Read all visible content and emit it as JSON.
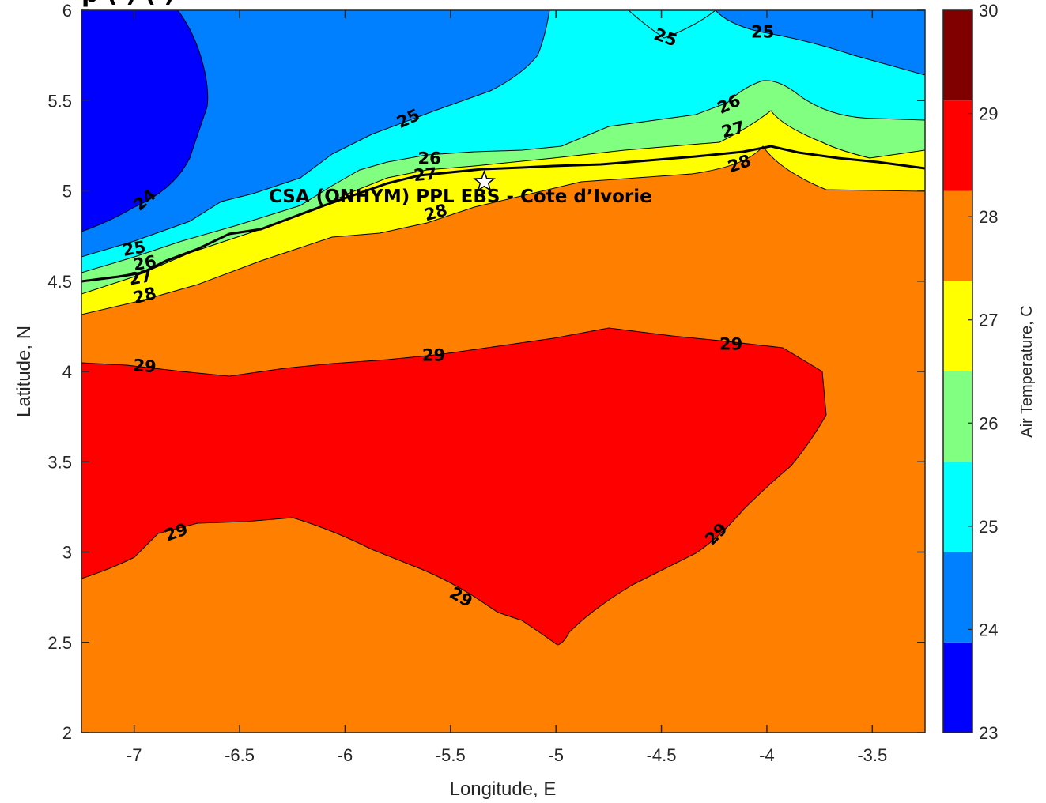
{
  "chart_data": {
    "type": "contourf",
    "xlabel": "Longitude, E",
    "ylabel": "Latitude, N",
    "xlim": [
      -7.25,
      -3.25
    ],
    "ylim": [
      2,
      6
    ],
    "xticks": [
      -7,
      -6.5,
      -6,
      -5.5,
      -5,
      -4.5,
      -4,
      -3.5
    ],
    "yticks": [
      2,
      2.5,
      3,
      3.5,
      4,
      4.5,
      5,
      5.5,
      6
    ],
    "colorbar": {
      "label": "Air Temperature, C",
      "range": [
        23,
        30
      ],
      "ticks": [
        23,
        24,
        25,
        26,
        27,
        28,
        29,
        30
      ],
      "colors": [
        "#0000ff",
        "#0080ff",
        "#00ffff",
        "#80ff80",
        "#ffff00",
        "#ff8000",
        "#ff0000",
        "#800000"
      ]
    },
    "contour_labels": [
      {
        "text": "24",
        "lon": -6.95,
        "lat": 4.95,
        "rot": -40
      },
      {
        "text": "25",
        "lon": -7.0,
        "lat": 4.68,
        "rot": -10
      },
      {
        "text": "26",
        "lon": -6.95,
        "lat": 4.6,
        "rot": -10
      },
      {
        "text": "27",
        "lon": -6.97,
        "lat": 4.52,
        "rot": -10
      },
      {
        "text": "28",
        "lon": -6.95,
        "lat": 4.42,
        "rot": -15
      },
      {
        "text": "25",
        "lon": -5.7,
        "lat": 5.4,
        "rot": -25
      },
      {
        "text": "26",
        "lon": -5.6,
        "lat": 5.18,
        "rot": 0
      },
      {
        "text": "27",
        "lon": -5.62,
        "lat": 5.09,
        "rot": -5
      },
      {
        "text": "28",
        "lon": -5.57,
        "lat": 4.88,
        "rot": -15
      },
      {
        "text": "25",
        "lon": -4.48,
        "lat": 5.85,
        "rot": 20
      },
      {
        "text": "25",
        "lon": -4.02,
        "lat": 5.88,
        "rot": 0
      },
      {
        "text": "26",
        "lon": -4.18,
        "lat": 5.48,
        "rot": -25
      },
      {
        "text": "27",
        "lon": -4.16,
        "lat": 5.34,
        "rot": -15
      },
      {
        "text": "28",
        "lon": -4.13,
        "lat": 5.15,
        "rot": -20
      },
      {
        "text": "29",
        "lon": -6.95,
        "lat": 4.03,
        "rot": 5
      },
      {
        "text": "29",
        "lon": -5.58,
        "lat": 4.09,
        "rot": 0
      },
      {
        "text": "29",
        "lon": -4.17,
        "lat": 4.15,
        "rot": 0
      },
      {
        "text": "29",
        "lon": -6.8,
        "lat": 3.11,
        "rot": -20
      },
      {
        "text": "29",
        "lon": -5.45,
        "lat": 2.75,
        "rot": 30
      },
      {
        "text": "29",
        "lon": -4.24,
        "lat": 3.1,
        "rot": -45
      }
    ],
    "annotation": {
      "text": "CSA (ONHYM) PPL EBS  - Cote d’Ivorie",
      "marker": "star",
      "lon": -5.34,
      "lat": 5.05
    },
    "title_partial": "p        ( )          (        )"
  }
}
